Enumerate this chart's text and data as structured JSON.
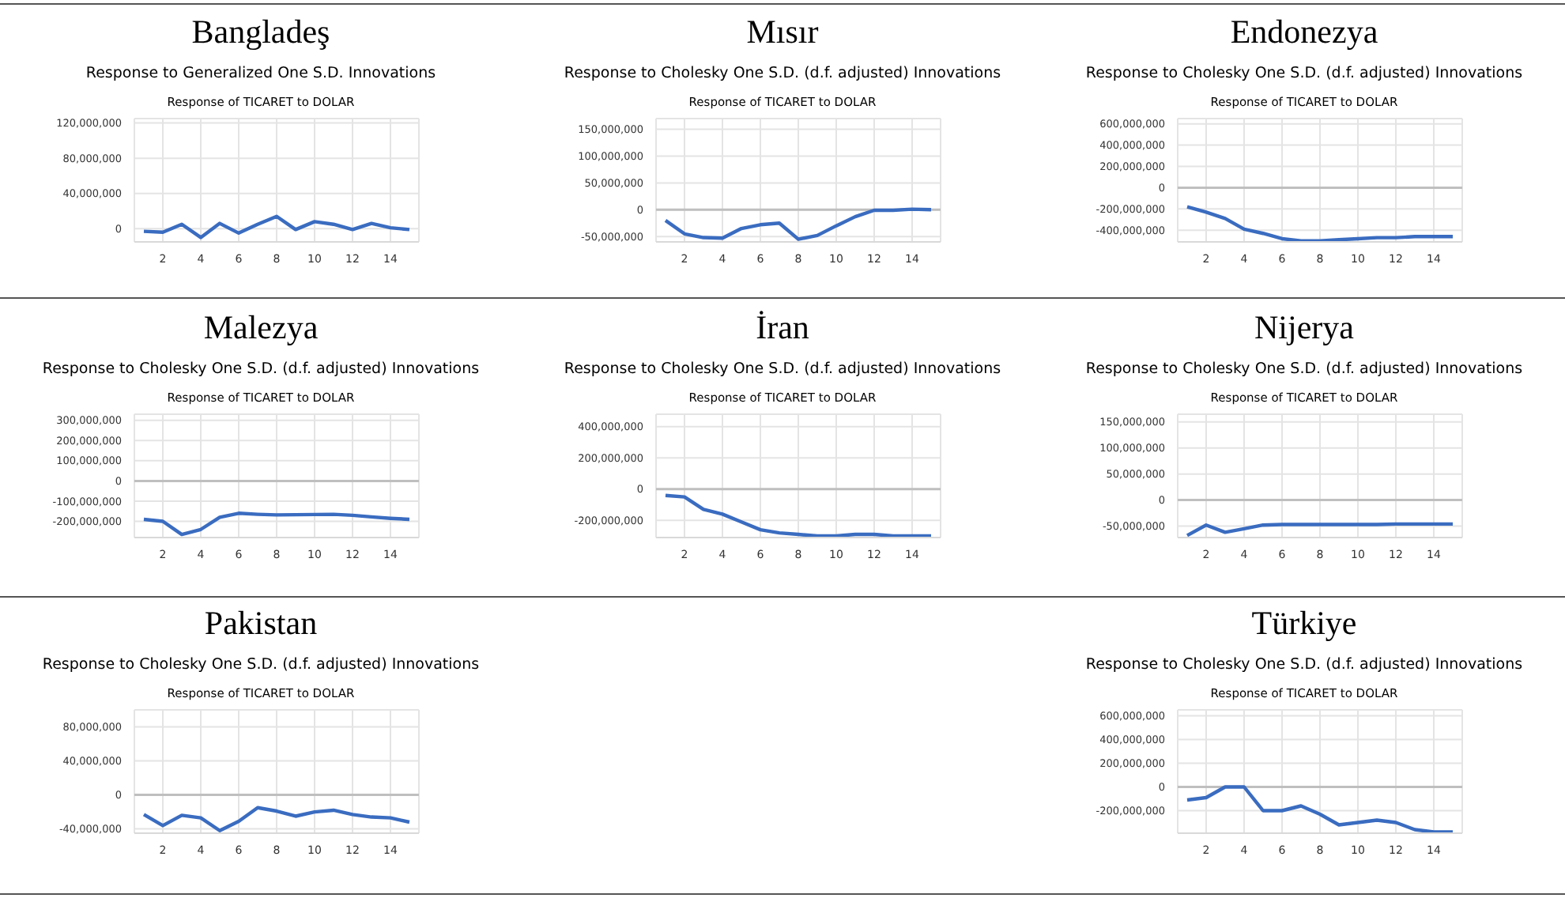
{
  "chart_data": [
    {
      "type": "line",
      "title": "Bangladeş",
      "subtitle": "Response to Generalized One S.D. Innovations",
      "annotations": [
        "Response of TICARET to DOLAR"
      ],
      "x": [
        1,
        2,
        3,
        4,
        5,
        6,
        7,
        8,
        9,
        10,
        11,
        12,
        13,
        14,
        15
      ],
      "xlim": [
        0.5,
        15.5
      ],
      "xticks": [
        2,
        4,
        6,
        8,
        10,
        12,
        14
      ],
      "ylim": [
        -15000000,
        125000000
      ],
      "yticks": [
        {
          "value": 0,
          "label": "0"
        },
        {
          "value": 40000000,
          "label": "40,000,000"
        },
        {
          "value": 80000000,
          "label": "80,000,000"
        },
        {
          "value": 120000000,
          "label": "120,000,000"
        }
      ],
      "grid": true,
      "series": [
        {
          "color": "#3a6cc0",
          "values": [
            -3000000,
            -4000000,
            5000000,
            -10000000,
            6000000,
            -5000000,
            5000000,
            14000000,
            -1000000,
            8000000,
            5000000,
            -1000000,
            6000000,
            1000000,
            -1000000
          ]
        }
      ]
    },
    {
      "type": "line",
      "title": "Mısır",
      "subtitle": "Response to Cholesky One S.D. (d.f. adjusted) Innovations",
      "annotations": [
        "Response of TICARET to DOLAR"
      ],
      "x": [
        1,
        2,
        3,
        4,
        5,
        6,
        7,
        8,
        9,
        10,
        11,
        12,
        13,
        14,
        15
      ],
      "xlim": [
        0.5,
        15.5
      ],
      "xticks": [
        2,
        4,
        6,
        8,
        10,
        12,
        14
      ],
      "ylim": [
        -60000000,
        170000000
      ],
      "yticks": [
        {
          "value": -50000000,
          "label": "-50,000,000"
        },
        {
          "value": 0,
          "label": "0"
        },
        {
          "value": 50000000,
          "label": "50,000,000"
        },
        {
          "value": 100000000,
          "label": "100,000,000"
        },
        {
          "value": 150000000,
          "label": "150,000,000"
        }
      ],
      "grid": true,
      "ref_lines": [
        {
          "axis": "y",
          "value": 0,
          "color": "#bfbfbf"
        }
      ],
      "series": [
        {
          "color": "#3a6cc0",
          "values": [
            -20000000,
            -45000000,
            -52000000,
            -53000000,
            -35000000,
            -28000000,
            -25000000,
            -55000000,
            -48000000,
            -30000000,
            -13000000,
            -1000000,
            -1000000,
            1000000,
            0
          ]
        }
      ]
    },
    {
      "type": "line",
      "title": "Endonezya",
      "subtitle": "Response to Cholesky One S.D. (d.f. adjusted) Innovations",
      "annotations": [
        "Response of TICARET to DOLAR"
      ],
      "x": [
        1,
        2,
        3,
        4,
        5,
        6,
        7,
        8,
        9,
        10,
        11,
        12,
        13,
        14,
        15
      ],
      "xlim": [
        0.5,
        15.5
      ],
      "xticks": [
        2,
        4,
        6,
        8,
        10,
        12,
        14
      ],
      "ylim": [
        -510000000,
        650000000
      ],
      "yticks": [
        {
          "value": -400000000,
          "label": "-400,000,000"
        },
        {
          "value": -200000000,
          "label": "-200,000,000"
        },
        {
          "value": 0,
          "label": "0"
        },
        {
          "value": 200000000,
          "label": "200,000,000"
        },
        {
          "value": 400000000,
          "label": "400,000,000"
        },
        {
          "value": 600000000,
          "label": "600,000,000"
        }
      ],
      "grid": true,
      "ref_lines": [
        {
          "axis": "y",
          "value": 0,
          "color": "#bfbfbf"
        }
      ],
      "series": [
        {
          "color": "#3a6cc0",
          "values": [
            -180000000,
            -230000000,
            -290000000,
            -390000000,
            -430000000,
            -480000000,
            -500000000,
            -500000000,
            -490000000,
            -480000000,
            -470000000,
            -470000000,
            -460000000,
            -460000000,
            -460000000
          ]
        }
      ]
    },
    {
      "type": "line",
      "title": "Malezya",
      "subtitle": "Response to Cholesky One S.D. (d.f. adjusted) Innovations",
      "annotations": [
        "Response of TICARET to DOLAR"
      ],
      "x": [
        1,
        2,
        3,
        4,
        5,
        6,
        7,
        8,
        9,
        10,
        11,
        12,
        13,
        14,
        15
      ],
      "xlim": [
        0.5,
        15.5
      ],
      "xticks": [
        2,
        4,
        6,
        8,
        10,
        12,
        14
      ],
      "ylim": [
        -280000000,
        330000000
      ],
      "yticks": [
        {
          "value": -200000000,
          "label": "-200,000,000"
        },
        {
          "value": -100000000,
          "label": "-100,000,000"
        },
        {
          "value": 0,
          "label": "0"
        },
        {
          "value": 100000000,
          "label": "100,000,000"
        },
        {
          "value": 200000000,
          "label": "200,000,000"
        },
        {
          "value": 300000000,
          "label": "300,000,000"
        }
      ],
      "grid": true,
      "ref_lines": [
        {
          "axis": "y",
          "value": 0,
          "color": "#bfbfbf"
        }
      ],
      "series": [
        {
          "color": "#3a6cc0",
          "values": [
            -190000000,
            -200000000,
            -265000000,
            -240000000,
            -180000000,
            -160000000,
            -165000000,
            -168000000,
            -167000000,
            -166000000,
            -165000000,
            -170000000,
            -178000000,
            -185000000,
            -190000000
          ]
        }
      ]
    },
    {
      "type": "line",
      "title": "İran",
      "subtitle": "Response to Cholesky One S.D. (d.f. adjusted) Innovations",
      "annotations": [
        "Response of TICARET to DOLAR"
      ],
      "x": [
        1,
        2,
        3,
        4,
        5,
        6,
        7,
        8,
        9,
        10,
        11,
        12,
        13,
        14,
        15
      ],
      "xlim": [
        0.5,
        15.5
      ],
      "xticks": [
        2,
        4,
        6,
        8,
        10,
        12,
        14
      ],
      "ylim": [
        -310000000,
        480000000
      ],
      "yticks": [
        {
          "value": -200000000,
          "label": "-200,000,000"
        },
        {
          "value": 0,
          "label": "0"
        },
        {
          "value": 200000000,
          "label": "200,000,000"
        },
        {
          "value": 400000000,
          "label": "400,000,000"
        }
      ],
      "grid": true,
      "ref_lines": [
        {
          "axis": "y",
          "value": 0,
          "color": "#bfbfbf"
        }
      ],
      "series": [
        {
          "color": "#3a6cc0",
          "values": [
            -40000000,
            -50000000,
            -130000000,
            -160000000,
            -210000000,
            -260000000,
            -280000000,
            -290000000,
            -300000000,
            -300000000,
            -290000000,
            -290000000,
            -300000000,
            -300000000,
            -300000000
          ]
        }
      ]
    },
    {
      "type": "line",
      "title": "Nijerya",
      "subtitle": "Response to Cholesky One S.D. (d.f. adjusted) Innovations",
      "annotations": [
        "Response of TICARET to DOLAR"
      ],
      "x": [
        1,
        2,
        3,
        4,
        5,
        6,
        7,
        8,
        9,
        10,
        11,
        12,
        13,
        14,
        15
      ],
      "xlim": [
        0.5,
        15.5
      ],
      "xticks": [
        2,
        4,
        6,
        8,
        10,
        12,
        14
      ],
      "ylim": [
        -72000000,
        165000000
      ],
      "yticks": [
        {
          "value": -50000000,
          "label": "-50,000,000"
        },
        {
          "value": 0,
          "label": "0"
        },
        {
          "value": 50000000,
          "label": "50,000,000"
        },
        {
          "value": 100000000,
          "label": "100,000,000"
        },
        {
          "value": 150000000,
          "label": "150,000,000"
        }
      ],
      "grid": true,
      "ref_lines": [
        {
          "axis": "y",
          "value": 0,
          "color": "#bfbfbf"
        }
      ],
      "series": [
        {
          "color": "#3a6cc0",
          "values": [
            -68000000,
            -48000000,
            -62000000,
            -55000000,
            -48000000,
            -47000000,
            -47000000,
            -47000000,
            -47000000,
            -47000000,
            -47000000,
            -46000000,
            -46000000,
            -46000000,
            -46000000
          ]
        }
      ]
    },
    {
      "type": "line",
      "title": "Pakistan",
      "subtitle": "Response to Cholesky One S.D. (d.f. adjusted) Innovations",
      "annotations": [
        "Response of TICARET to DOLAR"
      ],
      "x": [
        1,
        2,
        3,
        4,
        5,
        6,
        7,
        8,
        9,
        10,
        11,
        12,
        13,
        14,
        15
      ],
      "xlim": [
        0.5,
        15.5
      ],
      "xticks": [
        2,
        4,
        6,
        8,
        10,
        12,
        14
      ],
      "ylim": [
        -45000000,
        100000000
      ],
      "yticks": [
        {
          "value": -40000000,
          "label": "-40,000,000"
        },
        {
          "value": 0,
          "label": "0"
        },
        {
          "value": 40000000,
          "label": "40,000,000"
        },
        {
          "value": 80000000,
          "label": "80,000,000"
        }
      ],
      "grid": true,
      "ref_lines": [
        {
          "axis": "y",
          "value": 0,
          "color": "#bfbfbf"
        }
      ],
      "series": [
        {
          "color": "#3a6cc0",
          "values": [
            -23000000,
            -36000000,
            -24000000,
            -27000000,
            -42000000,
            -31000000,
            -15000000,
            -19000000,
            -25000000,
            -20000000,
            -18000000,
            -23000000,
            -26000000,
            -27000000,
            -32000000
          ]
        }
      ]
    },
    {
      "type": "line",
      "title": "Türkiye",
      "subtitle": "Response to Cholesky One S.D. (d.f. adjusted) Innovations",
      "annotations": [
        "Response of TICARET to DOLAR"
      ],
      "x": [
        1,
        2,
        3,
        4,
        5,
        6,
        7,
        8,
        9,
        10,
        11,
        12,
        13,
        14,
        15
      ],
      "xlim": [
        0.5,
        15.5
      ],
      "xticks": [
        2,
        4,
        6,
        8,
        10,
        12,
        14
      ],
      "ylim": [
        -390000000,
        650000000
      ],
      "yticks": [
        {
          "value": -200000000,
          "label": "-200,000,000"
        },
        {
          "value": 0,
          "label": "0"
        },
        {
          "value": 200000000,
          "label": "200,000,000"
        },
        {
          "value": 400000000,
          "label": "400,000,000"
        },
        {
          "value": 600000000,
          "label": "600,000,000"
        }
      ],
      "grid": true,
      "ref_lines": [
        {
          "axis": "y",
          "value": 0,
          "color": "#bfbfbf"
        }
      ],
      "series": [
        {
          "color": "#3a6cc0",
          "values": [
            -110000000,
            -90000000,
            0,
            0,
            -200000000,
            -200000000,
            -160000000,
            -230000000,
            -320000000,
            -300000000,
            -280000000,
            -300000000,
            -360000000,
            -380000000,
            -380000000
          ]
        }
      ]
    }
  ]
}
